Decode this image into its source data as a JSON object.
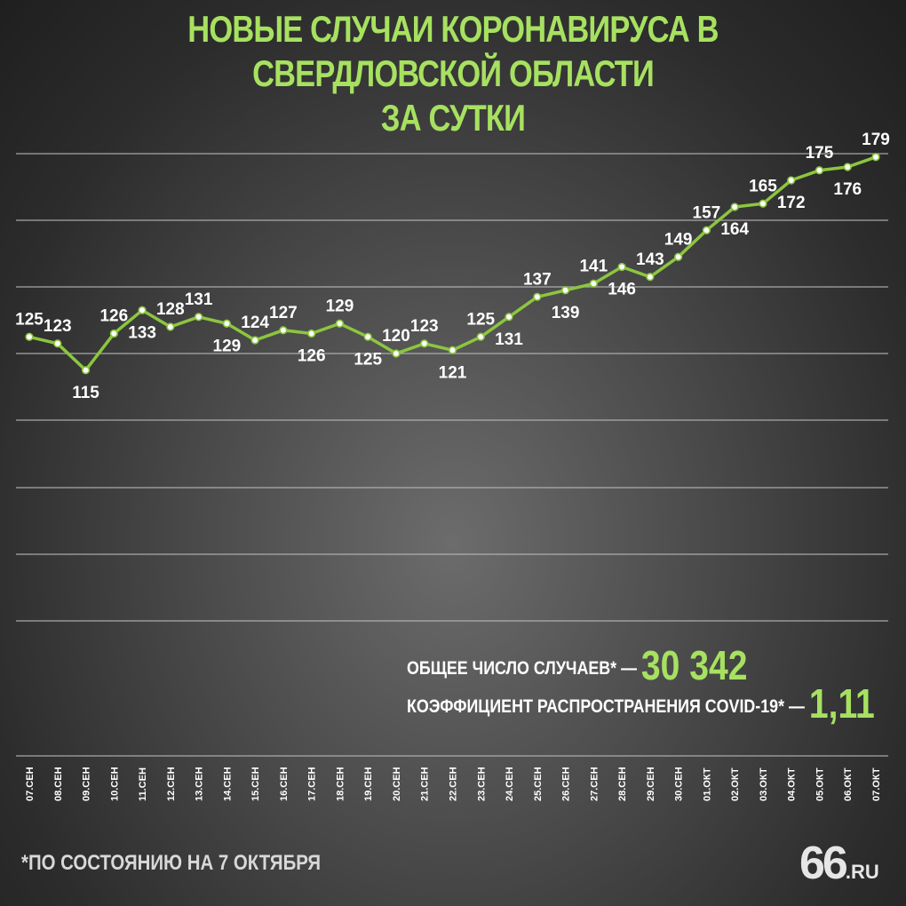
{
  "title": {
    "line1": "НОВЫЕ СЛУЧАИ КОРОНАВИРУСА В СВЕРДЛОВСКОЙ ОБЛАСТИ",
    "line2": "ЗА СУТКИ"
  },
  "stats": {
    "total_label": "ОБЩЕЕ ЧИСЛО СЛУЧАЕВ* —",
    "total_value": "30 342",
    "coef_label": "КОЭФФИЦИЕНТ РАСПРОСТРАНЕНИЯ COVID-19* —",
    "coef_value": "1,11"
  },
  "footnote": "*ПО СОСТОЯНИЮ НА 7 ОКТЯБРЯ",
  "logo": {
    "number": "66",
    "domain": ".RU"
  },
  "colors": {
    "accent": "#a7e160",
    "line": "#8cc63f",
    "marker_fill": "#ffffff",
    "text": "#ffffff",
    "grid": "#bdbdbd"
  },
  "chart_data": {
    "type": "line",
    "categories": [
      "07.СЕН",
      "08.СЕН",
      "09.СЕН",
      "10.СЕН",
      "11.СЕН",
      "12.СЕН",
      "13.СЕН",
      "14.СЕН",
      "15.СЕН",
      "16.СЕН",
      "17.СЕН",
      "18.СЕН",
      "19.СЕН",
      "20.СЕН",
      "21.СЕН",
      "22.СЕН",
      "23.СЕН",
      "24.СЕН",
      "25.СЕН",
      "26.СЕН",
      "27.СЕН",
      "28.СЕН",
      "29.СЕН",
      "30.СЕН",
      "01.ОКТ",
      "02.ОКТ",
      "03.ОКТ",
      "04.ОКТ",
      "05.ОКТ",
      "06.ОКТ",
      "07.ОКТ"
    ],
    "values": [
      125,
      123,
      115,
      126,
      133,
      128,
      131,
      129,
      124,
      127,
      126,
      129,
      125,
      120,
      123,
      121,
      125,
      131,
      137,
      139,
      141,
      146,
      143,
      149,
      157,
      164,
      165,
      172,
      175,
      176,
      179
    ],
    "label_position": [
      "above",
      "above",
      "below",
      "above",
      "below",
      "above",
      "above",
      "below",
      "above",
      "above",
      "below",
      "above",
      "below",
      "above",
      "above",
      "below",
      "above",
      "below",
      "above",
      "below",
      "above",
      "below",
      "above",
      "above",
      "above",
      "below",
      "above",
      "below",
      "above",
      "below",
      "above"
    ],
    "ylim": [
      0,
      180
    ],
    "grid": true,
    "xlabel": "",
    "ylabel": ""
  }
}
